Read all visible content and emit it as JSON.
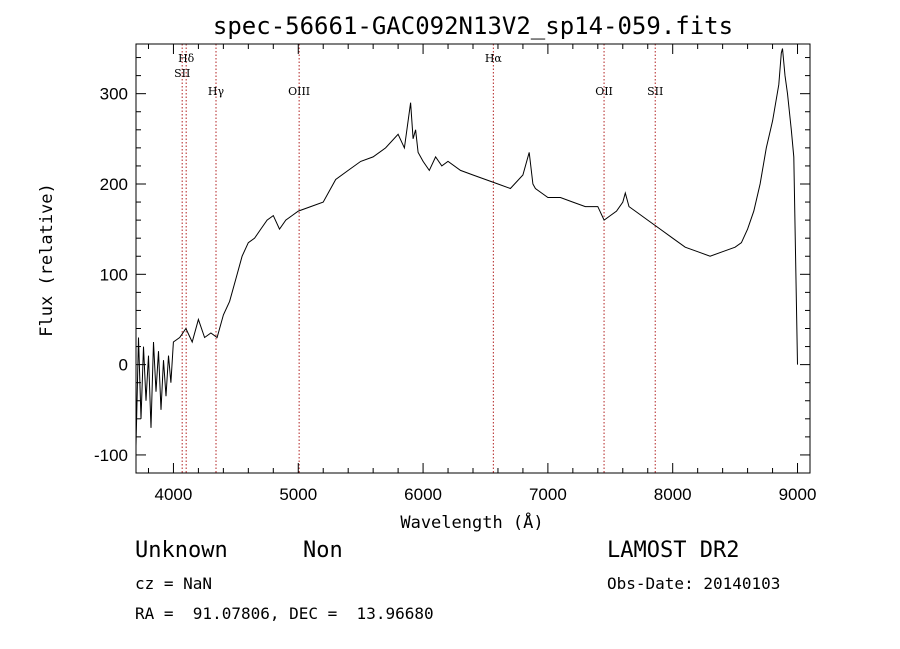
{
  "footer": {
    "class_label": "Unknown",
    "subclass_label": "Non",
    "survey": "LAMOST DR2",
    "redshift": "cz = NaN",
    "obs_date": "Obs-Date: 20140103",
    "coords": "RA =  91.07806, DEC =  13.96680"
  },
  "colors": {
    "spectrum": "#000000",
    "line_markers": "#b22222",
    "axes": "#000000"
  },
  "chart_data": {
    "type": "line",
    "title": "spec-56661-GAC092N13V2_sp14-059.fits",
    "xlabel": "Wavelength (Å)",
    "ylabel": "Flux (relative)",
    "xlim": [
      3700,
      9100
    ],
    "ylim": [
      -120,
      355
    ],
    "x_ticks": [
      4000,
      5000,
      6000,
      7000,
      8000,
      9000
    ],
    "y_ticks": [
      -100,
      0,
      100,
      200,
      300
    ],
    "grid": false,
    "series": [
      {
        "x": [
          3700,
          3720,
          3740,
          3760,
          3780,
          3800,
          3820,
          3840,
          3860,
          3880,
          3900,
          3920,
          3940,
          3960,
          3980,
          4000,
          4050,
          4100,
          4150,
          4200,
          4250,
          4300,
          4350,
          4400,
          4450,
          4500,
          4550,
          4600,
          4650,
          4700,
          4750,
          4800,
          4850,
          4900,
          4950,
          5000,
          5100,
          5200,
          5300,
          5400,
          5500,
          5600,
          5700,
          5800,
          5850,
          5900,
          5920,
          5940,
          5960,
          6000,
          6050,
          6100,
          6150,
          6200,
          6300,
          6400,
          6500,
          6600,
          6700,
          6800,
          6850,
          6880,
          6900,
          6950,
          7000,
          7100,
          7200,
          7300,
          7400,
          7450,
          7500,
          7550,
          7600,
          7620,
          7650,
          7700,
          7800,
          7900,
          8000,
          8100,
          8200,
          8300,
          8400,
          8500,
          8550,
          8600,
          8650,
          8700,
          8750,
          8800,
          8850,
          8870,
          8880,
          8900,
          8920,
          8950,
          8970,
          9000
        ],
        "values": [
          -90,
          30,
          -60,
          20,
          -40,
          10,
          -70,
          25,
          -30,
          15,
          -50,
          5,
          -35,
          10,
          -20,
          25,
          30,
          40,
          25,
          50,
          30,
          35,
          30,
          55,
          70,
          95,
          120,
          135,
          140,
          150,
          160,
          165,
          150,
          160,
          165,
          170,
          175,
          180,
          205,
          215,
          225,
          230,
          240,
          255,
          240,
          290,
          250,
          260,
          235,
          225,
          215,
          230,
          220,
          225,
          215,
          210,
          205,
          200,
          195,
          210,
          235,
          200,
          195,
          190,
          185,
          185,
          180,
          175,
          175,
          160,
          165,
          170,
          180,
          190,
          175,
          170,
          160,
          150,
          140,
          130,
          125,
          120,
          125,
          130,
          135,
          150,
          170,
          200,
          240,
          270,
          310,
          345,
          350,
          320,
          300,
          260,
          230,
          0
        ]
      }
    ],
    "line_markers": [
      {
        "label": "Hδ",
        "x": 4102
      },
      {
        "label": "SII",
        "x": 4070
      },
      {
        "label": "Hγ",
        "x": 4341
      },
      {
        "label": "OIII",
        "x": 5007
      },
      {
        "label": "Hα",
        "x": 6563
      },
      {
        "label": "OII",
        "x": 7450
      },
      {
        "label": "SII",
        "x": 7860
      }
    ]
  }
}
